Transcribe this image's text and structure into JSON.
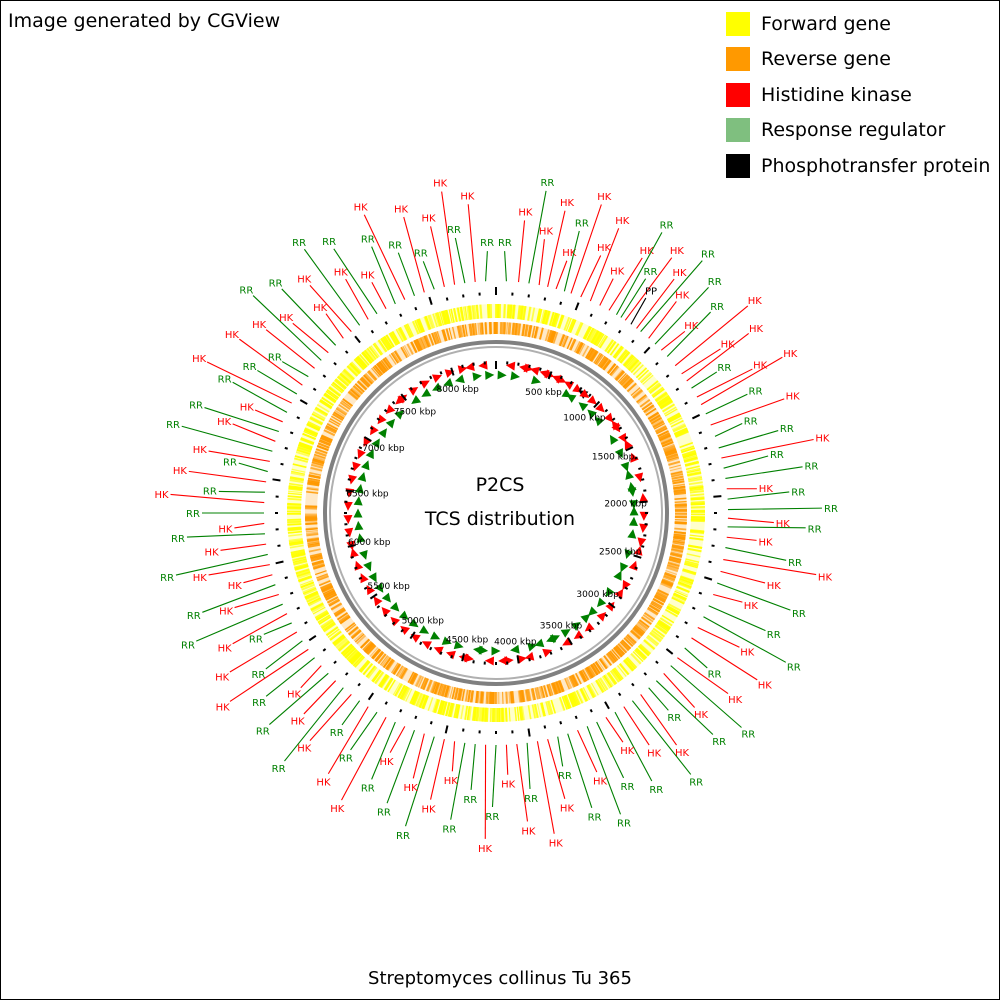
{
  "credit": "Image generated by CGView",
  "center_title": "P2CS",
  "center_subtitle": "TCS distribution",
  "organism": "Streptomyces collinus Tu 365",
  "legend": [
    {
      "label": "Forward gene",
      "color": "#ffff00"
    },
    {
      "label": "Reverse gene",
      "color": "#ff9900"
    },
    {
      "label": "Histidine kinase",
      "color": "#ff0000"
    },
    {
      "label": "Response regulator",
      "color": "#7fbf7f"
    },
    {
      "label": "Phosphotransfer protein",
      "color": "#000000"
    }
  ],
  "colors": {
    "forward": "#ffff00",
    "reverse": "#ff9900",
    "hk": "#ff0000",
    "rr": "#008000",
    "pp": "#000000",
    "backbone": "#808080"
  },
  "genome_length_kbp": 8400,
  "ruler_ticks": [
    {
      "kbp": 500,
      "label": "500 kbp"
    },
    {
      "kbp": 1000,
      "label": "1000 kbp"
    },
    {
      "kbp": 1500,
      "label": "1500 kbp"
    },
    {
      "kbp": 2000,
      "label": "2000 kbp"
    },
    {
      "kbp": 2500,
      "label": "2500 kbp"
    },
    {
      "kbp": 3000,
      "label": "3000 kbp"
    },
    {
      "kbp": 3500,
      "label": "3500 kbp"
    },
    {
      "kbp": 4000,
      "label": "4000 kbp"
    },
    {
      "kbp": 4500,
      "label": "4500 kbp"
    },
    {
      "kbp": 5000,
      "label": "5000 kbp"
    },
    {
      "kbp": 5500,
      "label": "5500 kbp"
    },
    {
      "kbp": 6000,
      "label": "6000 kbp"
    },
    {
      "kbp": 6500,
      "label": "6500 kbp"
    },
    {
      "kbp": 7000,
      "label": "7000 kbp"
    },
    {
      "kbp": 7500,
      "label": "7500 kbp"
    },
    {
      "kbp": 8000,
      "label": "8000 kbp"
    }
  ],
  "features": [
    {
      "kbp": 60,
      "type": "RR",
      "label": "RR"
    },
    {
      "kbp": 130,
      "type": "HK",
      "label": "HK"
    },
    {
      "kbp": 190,
      "type": "RR",
      "label": "RR"
    },
    {
      "kbp": 250,
      "type": "HK",
      "label": "HK"
    },
    {
      "kbp": 300,
      "type": "HK",
      "label": "HK"
    },
    {
      "kbp": 350,
      "type": "HK",
      "label": "HK"
    },
    {
      "kbp": 400,
      "type": "RR",
      "label": "RR"
    },
    {
      "kbp": 440,
      "type": "HK",
      "label": "HK"
    },
    {
      "kbp": 500,
      "type": "HK",
      "label": "HK"
    },
    {
      "kbp": 560,
      "type": "HK",
      "label": "HK"
    },
    {
      "kbp": 620,
      "type": "HK",
      "label": "HK"
    },
    {
      "kbp": 680,
      "type": "HK",
      "label": "HK"
    },
    {
      "kbp": 730,
      "type": "RR",
      "label": "RR"
    },
    {
      "kbp": 760,
      "type": "RR",
      "label": "RR"
    },
    {
      "kbp": 790,
      "type": "HK",
      "label": "HK"
    },
    {
      "kbp": 830,
      "type": "PP",
      "label": "PP"
    },
    {
      "kbp": 870,
      "type": "HK",
      "label": "HK"
    },
    {
      "kbp": 900,
      "type": "RR",
      "label": "RR"
    },
    {
      "kbp": 960,
      "type": "HK",
      "label": "HK"
    },
    {
      "kbp": 1010,
      "type": "RR",
      "label": "RR"
    },
    {
      "kbp": 1060,
      "type": "HK",
      "label": "HK"
    },
    {
      "kbp": 1110,
      "type": "RR",
      "label": "RR"
    },
    {
      "kbp": 1180,
      "type": "HK",
      "label": "HK"
    },
    {
      "kbp": 1240,
      "type": "HK",
      "label": "HK"
    },
    {
      "kbp": 1290,
      "type": "HK",
      "label": "HK"
    },
    {
      "kbp": 1340,
      "type": "RR",
      "label": "RR"
    },
    {
      "kbp": 1400,
      "type": "HK",
      "label": "HK"
    },
    {
      "kbp": 1450,
      "type": "HK",
      "label": "HK"
    },
    {
      "kbp": 1510,
      "type": "RR",
      "label": "RR"
    },
    {
      "kbp": 1580,
      "type": "HK",
      "label": "HK"
    },
    {
      "kbp": 1650,
      "type": "RR",
      "label": "RR"
    },
    {
      "kbp": 1720,
      "type": "RR",
      "label": "RR"
    },
    {
      "kbp": 1780,
      "type": "HK",
      "label": "HK"
    },
    {
      "kbp": 1840,
      "type": "RR",
      "label": "RR"
    },
    {
      "kbp": 1900,
      "type": "RR",
      "label": "RR"
    },
    {
      "kbp": 1960,
      "type": "HK",
      "label": "HK"
    },
    {
      "kbp": 2020,
      "type": "RR",
      "label": "RR"
    },
    {
      "kbp": 2080,
      "type": "RR",
      "label": "RR"
    },
    {
      "kbp": 2130,
      "type": "HK",
      "label": "HK"
    },
    {
      "kbp": 2180,
      "type": "RR",
      "label": "RR"
    },
    {
      "kbp": 2240,
      "type": "HK",
      "label": "HK"
    },
    {
      "kbp": 2300,
      "type": "RR",
      "label": "RR"
    },
    {
      "kbp": 2370,
      "type": "HK",
      "label": "HK"
    },
    {
      "kbp": 2440,
      "type": "HK",
      "label": "HK"
    },
    {
      "kbp": 2510,
      "type": "RR",
      "label": "RR"
    },
    {
      "kbp": 2580,
      "type": "HK",
      "label": "HK"
    },
    {
      "kbp": 2650,
      "type": "RR",
      "label": "RR"
    },
    {
      "kbp": 2720,
      "type": "RR",
      "label": "RR"
    },
    {
      "kbp": 2790,
      "type": "HK",
      "label": "HK"
    },
    {
      "kbp": 2860,
      "type": "HK",
      "label": "HK"
    },
    {
      "kbp": 2930,
      "type": "RR",
      "label": "RR"
    },
    {
      "kbp": 3000,
      "type": "HK",
      "label": "HK"
    },
    {
      "kbp": 3060,
      "type": "RR",
      "label": "RR"
    },
    {
      "kbp": 3120,
      "type": "HK",
      "label": "HK"
    },
    {
      "kbp": 3180,
      "type": "RR",
      "label": "RR"
    },
    {
      "kbp": 3240,
      "type": "RR",
      "label": "RR"
    },
    {
      "kbp": 3300,
      "type": "HK",
      "label": "HK"
    },
    {
      "kbp": 3360,
      "type": "RR",
      "label": "RR"
    },
    {
      "kbp": 3420,
      "type": "HK",
      "label": "HK"
    },
    {
      "kbp": 3480,
      "type": "RR",
      "label": "RR"
    },
    {
      "kbp": 3540,
      "type": "HK",
      "label": "HK"
    },
    {
      "kbp": 3600,
      "type": "RR",
      "label": "RR"
    },
    {
      "kbp": 3660,
      "type": "RR",
      "label": "RR"
    },
    {
      "kbp": 3720,
      "type": "HK",
      "label": "HK"
    },
    {
      "kbp": 3780,
      "type": "RR",
      "label": "RR"
    },
    {
      "kbp": 3840,
      "type": "RR",
      "label": "RR"
    },
    {
      "kbp": 3900,
      "type": "HK",
      "label": "HK"
    },
    {
      "kbp": 3960,
      "type": "HK",
      "label": "HK"
    },
    {
      "kbp": 4020,
      "type": "RR",
      "label": "RR"
    },
    {
      "kbp": 4080,
      "type": "HK",
      "label": "HK"
    },
    {
      "kbp": 4140,
      "type": "HK",
      "label": "HK"
    },
    {
      "kbp": 4200,
      "type": "RR",
      "label": "RR"
    },
    {
      "kbp": 4260,
      "type": "HK",
      "label": "HK"
    },
    {
      "kbp": 4320,
      "type": "RR",
      "label": "RR"
    },
    {
      "kbp": 4380,
      "type": "RR",
      "label": "RR"
    },
    {
      "kbp": 4440,
      "type": "HK",
      "label": "HK"
    },
    {
      "kbp": 4500,
      "type": "HK",
      "label": "HK"
    },
    {
      "kbp": 4560,
      "type": "RR",
      "label": "RR"
    },
    {
      "kbp": 4620,
      "type": "HK",
      "label": "HK"
    },
    {
      "kbp": 4680,
      "type": "RR",
      "label": "RR"
    },
    {
      "kbp": 4740,
      "type": "HK",
      "label": "HK"
    },
    {
      "kbp": 4800,
      "type": "RR",
      "label": "RR"
    },
    {
      "kbp": 4860,
      "type": "HK",
      "label": "HK"
    },
    {
      "kbp": 4920,
      "type": "RR",
      "label": "RR"
    },
    {
      "kbp": 4980,
      "type": "HK",
      "label": "HK"
    },
    {
      "kbp": 5040,
      "type": "RR",
      "label": "RR"
    },
    {
      "kbp": 5100,
      "type": "HK",
      "label": "HK"
    },
    {
      "kbp": 5160,
      "type": "RR",
      "label": "RR"
    },
    {
      "kbp": 5220,
      "type": "HK",
      "label": "HK"
    },
    {
      "kbp": 5280,
      "type": "RR",
      "label": "RR"
    },
    {
      "kbp": 5340,
      "type": "HK",
      "label": "HK"
    },
    {
      "kbp": 5400,
      "type": "RR",
      "label": "RR"
    },
    {
      "kbp": 5460,
      "type": "HK",
      "label": "HK"
    },
    {
      "kbp": 5520,
      "type": "RR",
      "label": "RR"
    },
    {
      "kbp": 5580,
      "type": "HK",
      "label": "HK"
    },
    {
      "kbp": 5640,
      "type": "RR",
      "label": "RR"
    },
    {
      "kbp": 5700,
      "type": "HK",
      "label": "HK"
    },
    {
      "kbp": 5760,
      "type": "RR",
      "label": "RR"
    },
    {
      "kbp": 5820,
      "type": "HK",
      "label": "HK"
    },
    {
      "kbp": 5880,
      "type": "RR",
      "label": "RR"
    },
    {
      "kbp": 5940,
      "type": "HK",
      "label": "HK"
    },
    {
      "kbp": 6000,
      "type": "HK",
      "label": "HK"
    },
    {
      "kbp": 6060,
      "type": "RR",
      "label": "RR"
    },
    {
      "kbp": 6120,
      "type": "HK",
      "label": "HK"
    },
    {
      "kbp": 6180,
      "type": "RR",
      "label": "RR"
    },
    {
      "kbp": 6240,
      "type": "HK",
      "label": "HK"
    },
    {
      "kbp": 6300,
      "type": "RR",
      "label": "RR"
    },
    {
      "kbp": 6360,
      "type": "HK",
      "label": "HK"
    },
    {
      "kbp": 6420,
      "type": "RR",
      "label": "RR"
    },
    {
      "kbp": 6480,
      "type": "HK",
      "label": "HK"
    },
    {
      "kbp": 6540,
      "type": "RR",
      "label": "RR"
    },
    {
      "kbp": 6600,
      "type": "HK",
      "label": "HK"
    },
    {
      "kbp": 6660,
      "type": "RR",
      "label": "RR"
    },
    {
      "kbp": 6720,
      "type": "HK",
      "label": "HK"
    },
    {
      "kbp": 6780,
      "type": "RR",
      "label": "RR"
    },
    {
      "kbp": 6840,
      "type": "HK",
      "label": "HK"
    },
    {
      "kbp": 6900,
      "type": "RR",
      "label": "RR"
    },
    {
      "kbp": 6960,
      "type": "HK",
      "label": "HK"
    },
    {
      "kbp": 7020,
      "type": "RR",
      "label": "RR"
    },
    {
      "kbp": 7080,
      "type": "HK",
      "label": "HK"
    },
    {
      "kbp": 7140,
      "type": "RR",
      "label": "RR"
    },
    {
      "kbp": 7200,
      "type": "HK",
      "label": "HK"
    },
    {
      "kbp": 7260,
      "type": "RR",
      "label": "RR"
    },
    {
      "kbp": 7320,
      "type": "HK",
      "label": "HK"
    },
    {
      "kbp": 7380,
      "type": "RR",
      "label": "RR"
    },
    {
      "kbp": 7440,
      "type": "HK",
      "label": "HK"
    },
    {
      "kbp": 7500,
      "type": "HK",
      "label": "HK"
    },
    {
      "kbp": 7560,
      "type": "RR",
      "label": "RR"
    },
    {
      "kbp": 7620,
      "type": "HK",
      "label": "HK"
    },
    {
      "kbp": 7680,
      "type": "RR",
      "label": "RR"
    },
    {
      "kbp": 7740,
      "type": "HK",
      "label": "HK"
    },
    {
      "kbp": 7800,
      "type": "RR",
      "label": "RR"
    },
    {
      "kbp": 7860,
      "type": "HK",
      "label": "HK"
    },
    {
      "kbp": 7920,
      "type": "RR",
      "label": "RR"
    },
    {
      "kbp": 7980,
      "type": "HK",
      "label": "HK"
    },
    {
      "kbp": 8040,
      "type": "RR",
      "label": "RR"
    },
    {
      "kbp": 8100,
      "type": "HK",
      "label": "HK"
    },
    {
      "kbp": 8160,
      "type": "HK",
      "label": "HK"
    },
    {
      "kbp": 8220,
      "type": "RR",
      "label": "RR"
    },
    {
      "kbp": 8280,
      "type": "HK",
      "label": "HK"
    },
    {
      "kbp": 8340,
      "type": "RR",
      "label": "RR"
    }
  ]
}
